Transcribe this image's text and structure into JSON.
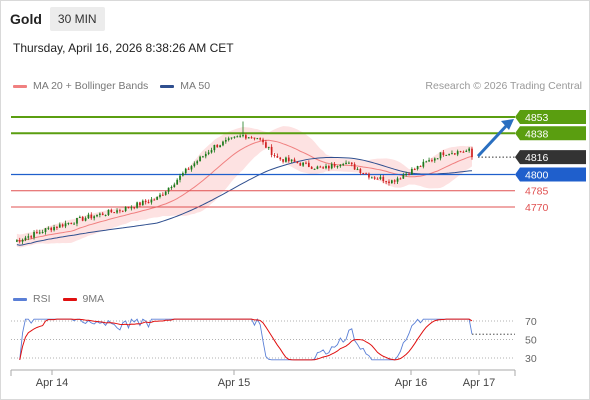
{
  "header": {
    "symbol": "Gold",
    "timeframe": "30 MIN",
    "datetime": "Thursday, April 16, 2026 8:38:26 AM CET"
  },
  "legend": {
    "ma20_label": "MA 20 + Bollinger Bands",
    "ma50_label": "MA 50",
    "credit": "Research © 2026 Trading Central",
    "rsi_label": "RSI",
    "rsi_ma_label": "9MA"
  },
  "colors": {
    "candle_up": "#1a7a1a",
    "candle_down": "#d02020",
    "bollinger": "#fde2e2",
    "ma20": "#f08080",
    "ma50": "#2f4f8f",
    "resistance": "#5a9e10",
    "pivot": "#1f5fcc",
    "support": "#e05050",
    "last_price": "#333333",
    "arrow": "#2a6fc0",
    "rsi": "#5a7fd6",
    "rsi_ma": "#e01010"
  },
  "chart_data": [
    {
      "type": "candlestick",
      "x_ticks": [
        "Apr 14",
        "Apr 15",
        "Apr 16",
        "Apr 17"
      ],
      "ylim": [
        4730,
        4870
      ],
      "series": [
        {
          "name": "MA 20 + Bollinger Bands",
          "kind": "line_with_bands"
        },
        {
          "name": "MA 50",
          "kind": "line"
        }
      ],
      "levels": [
        {
          "value": 4853,
          "label": "4853",
          "kind": "resistance"
        },
        {
          "value": 4838,
          "label": "4838",
          "kind": "resistance"
        },
        {
          "value": 4816,
          "label": "4816",
          "kind": "last_price"
        },
        {
          "value": 4800,
          "label": "4800",
          "kind": "pivot"
        },
        {
          "value": 4785,
          "label": "4785",
          "kind": "support"
        },
        {
          "value": 4770,
          "label": "4770",
          "kind": "support"
        }
      ],
      "last_price": 4816,
      "forecast_arrow": {
        "from": 4816,
        "to": 4853,
        "direction": "up"
      }
    },
    {
      "type": "line",
      "series": [
        {
          "name": "RSI"
        },
        {
          "name": "9MA"
        }
      ],
      "y_ticks": [
        70,
        50,
        30
      ],
      "ylim": [
        20,
        80
      ]
    }
  ]
}
